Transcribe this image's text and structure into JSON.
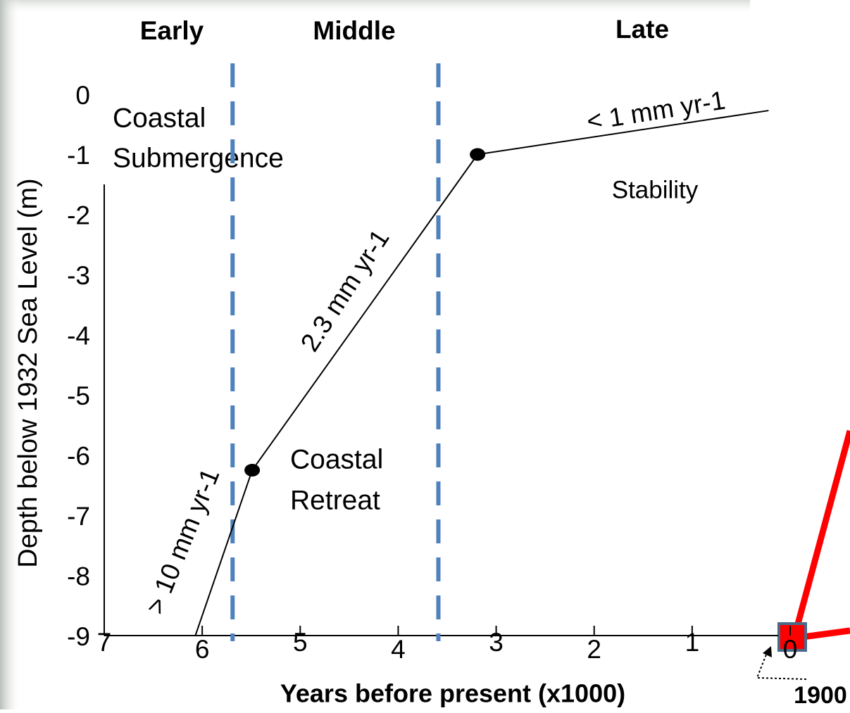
{
  "chart_data": {
    "type": "line",
    "periods": [
      "Early",
      "Middle",
      "Late"
    ],
    "period_boundaries": [
      5.69,
      3.59
    ],
    "boundary_color": "#4f81bd",
    "x_label": "Years before present (x1000)",
    "y_label": "Depth below 1932 Sea Level (m)",
    "reference_year": "1900",
    "annotations": [
      "Coastal",
      "Submergence",
      "Stability",
      "Coastal",
      "Retreat"
    ],
    "rate_labels": [
      "< 1 mm yr-1",
      "2.3 mm yr-1",
      "> 10 mm yr-1"
    ],
    "xlim": [
      7,
      0
    ],
    "ylim": [
      -9,
      0
    ],
    "xticks": [
      7,
      6,
      5,
      4,
      3,
      2,
      1,
      0
    ],
    "yticks": [
      0,
      -1,
      -2,
      -3,
      -4,
      -5,
      -6,
      -7,
      -8,
      -9
    ],
    "series": [
      {
        "color": "#000000",
        "x": [
          6.07,
          5.49,
          3.19,
          0.22
        ],
        "values": [
          -9,
          -6.25,
          -1.0,
          -0.27
        ]
      }
    ],
    "points": {
      "color": "#000000",
      "x": [
        5.49,
        3.19
      ],
      "values": [
        -6.25,
        -1.0
      ]
    }
  }
}
